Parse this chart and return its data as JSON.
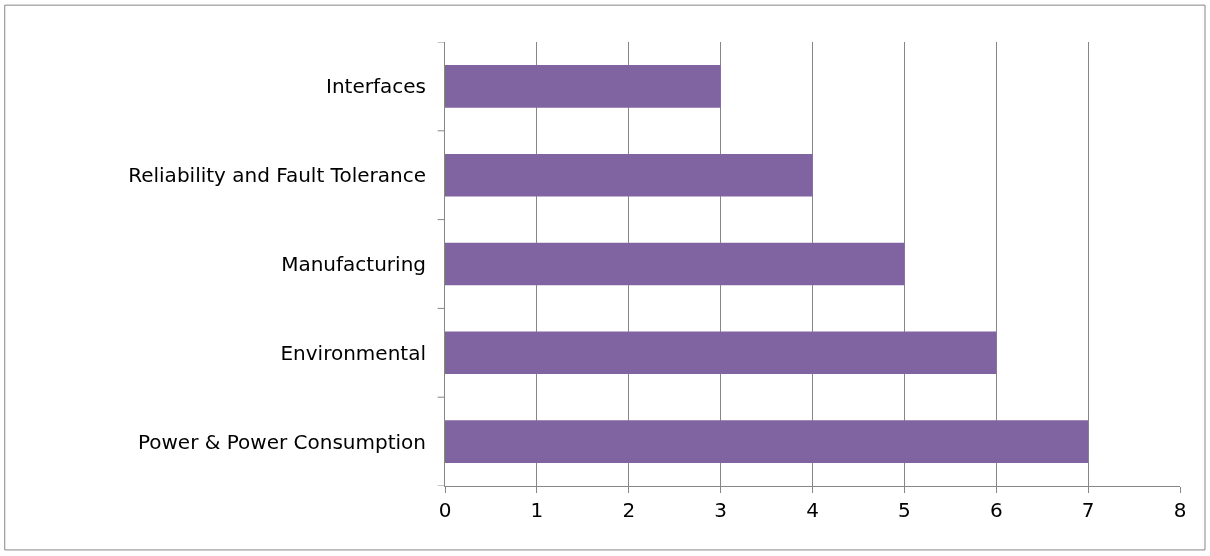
{
  "chart_data": {
    "type": "bar",
    "orientation": "horizontal",
    "categories": [
      "Interfaces",
      "Reliability and Fault Tolerance",
      "Manufacturing",
      "Environmental",
      "Power & Power Consumption"
    ],
    "values": [
      3,
      4,
      5,
      6,
      7
    ],
    "color": "#8064a2",
    "xlim": [
      0,
      8
    ],
    "xticks": [
      0,
      1,
      2,
      3,
      4,
      5,
      6,
      7,
      8
    ],
    "grid": "x"
  }
}
